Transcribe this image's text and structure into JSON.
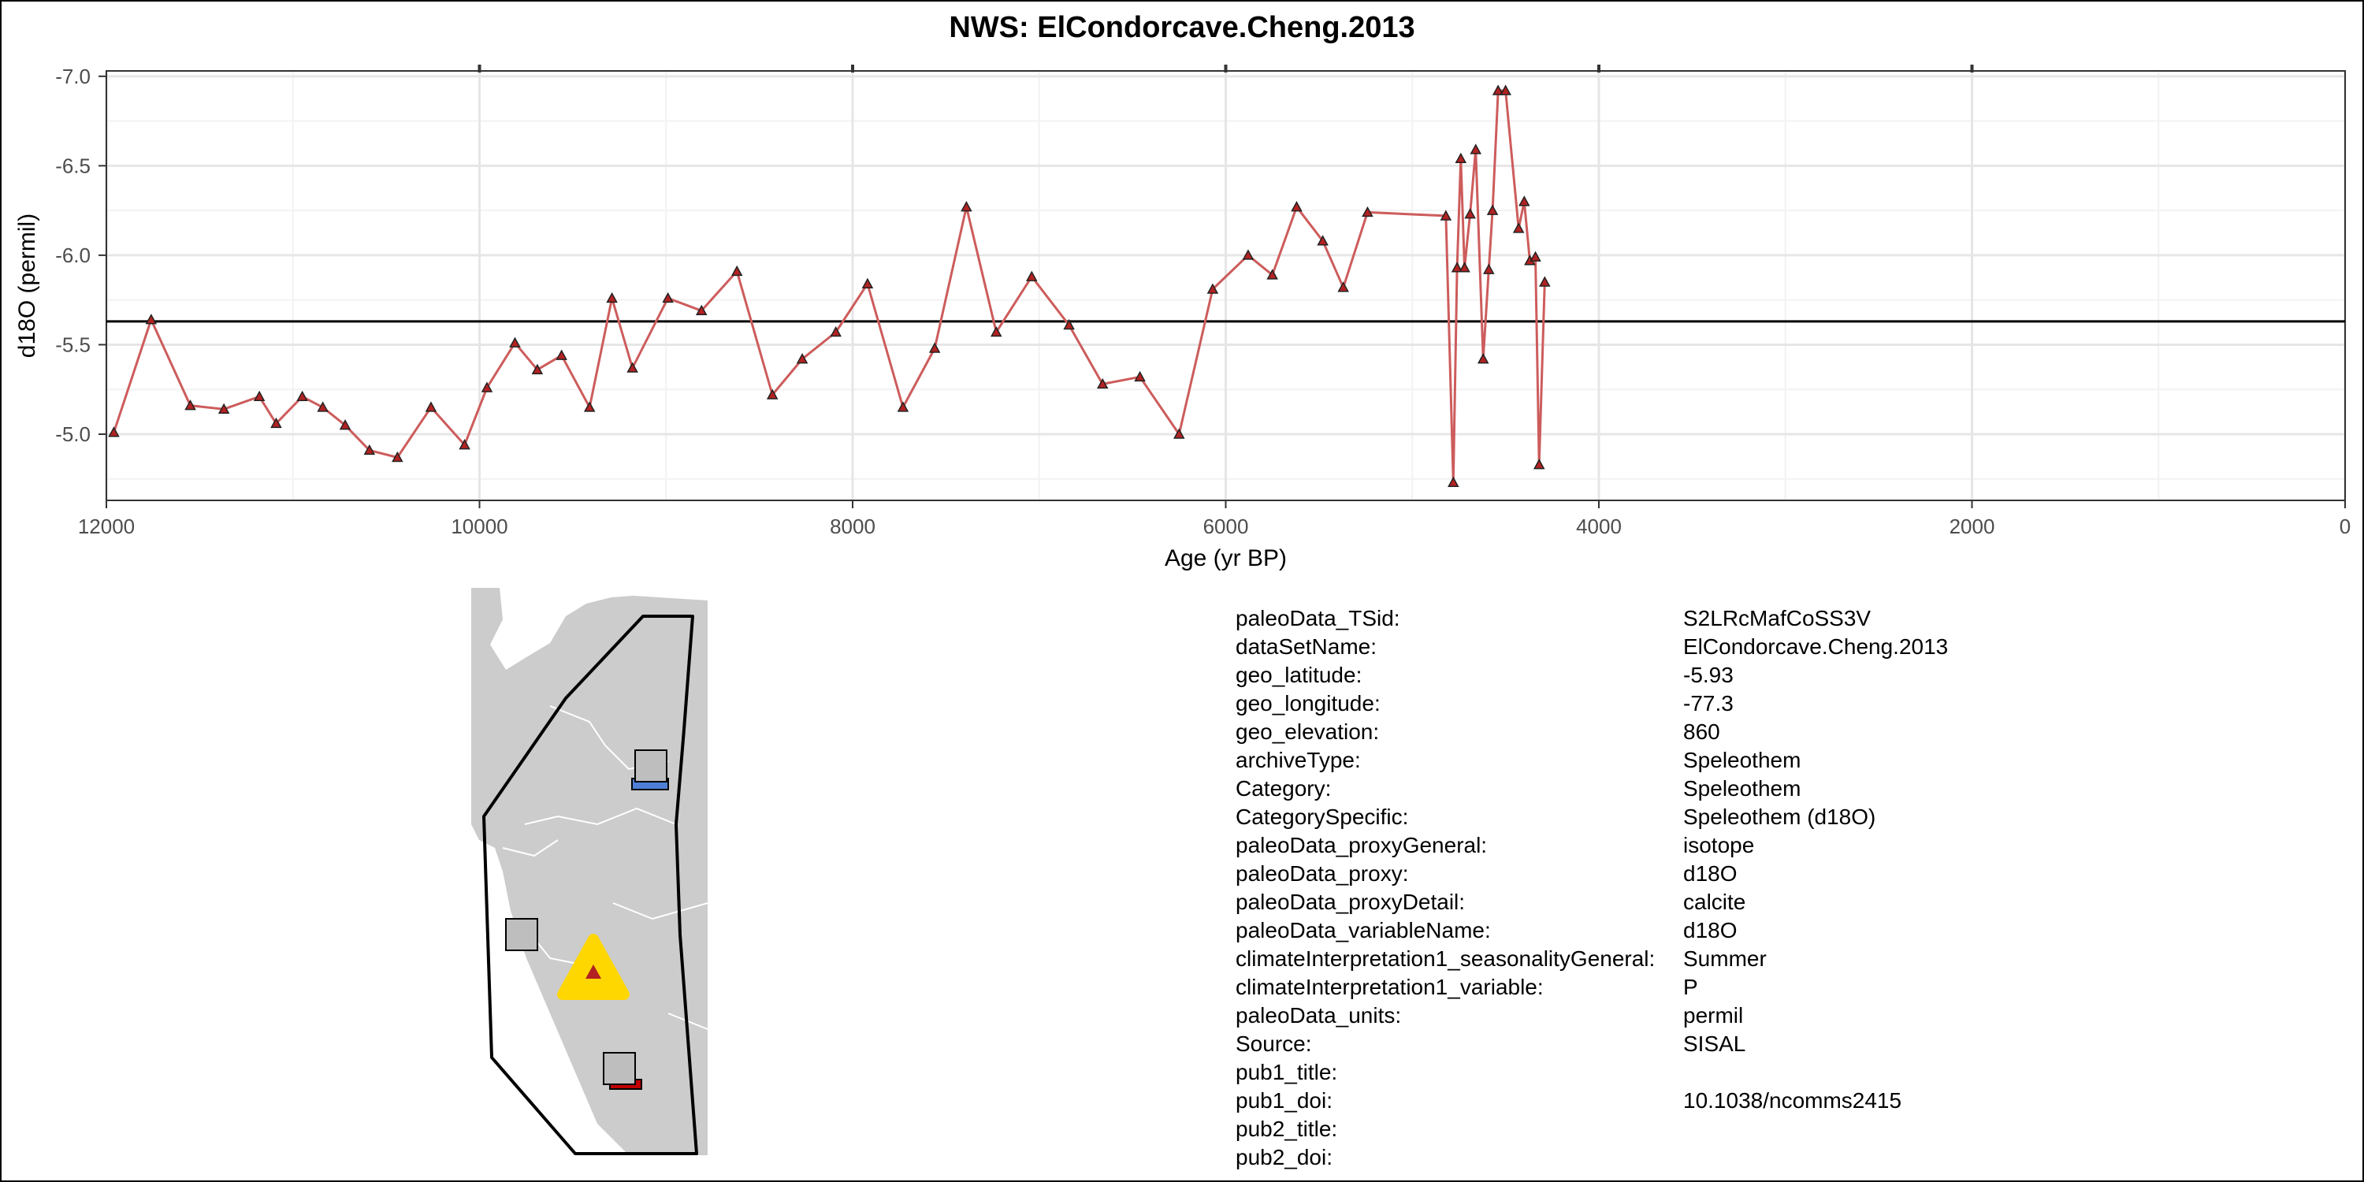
{
  "title": "NWS: ElCondorcave.Cheng.2013",
  "chart_data": {
    "type": "line",
    "title": "NWS: ElCondorcave.Cheng.2013",
    "xlabel": "Age (yr BP)",
    "ylabel": "d18O (permil)",
    "xlim": [
      12000,
      0
    ],
    "ylim": [
      -4.63,
      -7.03
    ],
    "x_reversed": true,
    "y_reversed": true,
    "x_ticks": [
      "12000",
      "10000",
      "8000",
      "6000",
      "4000",
      "2000",
      "0"
    ],
    "y_ticks": [
      "-7.0",
      "-6.5",
      "-6.0",
      "-5.5",
      "-5.0"
    ],
    "grid": true,
    "hline": -5.63,
    "line_color": "#CD5C5C",
    "marker": "triangle",
    "marker_fill": "#B22222",
    "series": [
      {
        "x": [
          11960,
          11760,
          11550,
          11370,
          11180,
          11090,
          10950,
          10840,
          10720,
          10590,
          10440,
          10260,
          10080,
          9960,
          9810,
          9690,
          9560,
          9410,
          9290,
          9180,
          8990,
          8810,
          8620,
          8430,
          8270,
          8090,
          7920,
          7730,
          7560,
          7390,
          7230,
          7040,
          6840,
          6660,
          6460,
          6250,
          6070,
          5880,
          5750,
          5620,
          5480,
          5370,
          5240,
          4820,
          4780,
          4760,
          4740,
          4720,
          4690,
          4660,
          4620,
          4590,
          4570,
          4540,
          4500,
          4430,
          4400,
          4370,
          4340,
          4320,
          4290
        ],
        "y": [
          -5.01,
          -5.64,
          -5.16,
          -5.14,
          -5.21,
          -5.06,
          -5.21,
          -5.15,
          -5.05,
          -4.91,
          -4.87,
          -5.15,
          -4.94,
          -5.26,
          -5.51,
          -5.36,
          -5.44,
          -5.15,
          -5.76,
          -5.37,
          -5.76,
          -5.69,
          -5.91,
          -5.22,
          -5.42,
          -5.57,
          -5.84,
          -5.15,
          -5.48,
          -6.27,
          -5.57,
          -5.88,
          -5.61,
          -5.28,
          -5.32,
          -5.0,
          -5.81,
          -6.0,
          -5.89,
          -6.27,
          -6.08,
          -5.82,
          -6.24,
          -6.22,
          -4.73,
          -5.93,
          -6.54,
          -5.93,
          -6.23,
          -6.59,
          -5.42,
          -5.92,
          -6.25,
          -6.92,
          -6.92,
          -6.15,
          -6.3,
          -5.97,
          -5.99,
          -4.83,
          -5.85
        ]
      }
    ]
  },
  "map": {
    "land_color": "#CCCCCC",
    "region_outline_color": "#000000",
    "site_marker_color": "#FFD700",
    "site_inner_color": "#B22222",
    "other_site_fill": "#BEBEBE",
    "other_site_accents": [
      "#4F7FD4",
      "#C00000"
    ]
  },
  "metadata": [
    {
      "key": "paleoData_TSid:",
      "value": "S2LRcMafCoSS3V"
    },
    {
      "key": "dataSetName:",
      "value": "ElCondorcave.Cheng.2013"
    },
    {
      "key": "geo_latitude:",
      "value": "-5.93"
    },
    {
      "key": "geo_longitude:",
      "value": "-77.3"
    },
    {
      "key": "geo_elevation:",
      "value": "860"
    },
    {
      "key": "archiveType:",
      "value": "Speleothem"
    },
    {
      "key": "Category:",
      "value": "Speleothem"
    },
    {
      "key": "CategorySpecific:",
      "value": "Speleothem (d18O)"
    },
    {
      "key": "paleoData_proxyGeneral:",
      "value": "isotope"
    },
    {
      "key": "paleoData_proxy:",
      "value": "d18O"
    },
    {
      "key": "paleoData_proxyDetail:",
      "value": "calcite"
    },
    {
      "key": "paleoData_variableName:",
      "value": "d18O"
    },
    {
      "key": "climateInterpretation1_seasonalityGeneral:",
      "value": "Summer"
    },
    {
      "key": "climateInterpretation1_variable:",
      "value": "P"
    },
    {
      "key": "paleoData_units:",
      "value": "permil"
    },
    {
      "key": "Source:",
      "value": "SISAL"
    },
    {
      "key": "pub1_title:",
      "value": ""
    },
    {
      "key": "pub1_doi:",
      "value": "10.1038/ncomms2415"
    },
    {
      "key": "pub2_title:",
      "value": ""
    },
    {
      "key": "pub2_doi:",
      "value": ""
    }
  ]
}
